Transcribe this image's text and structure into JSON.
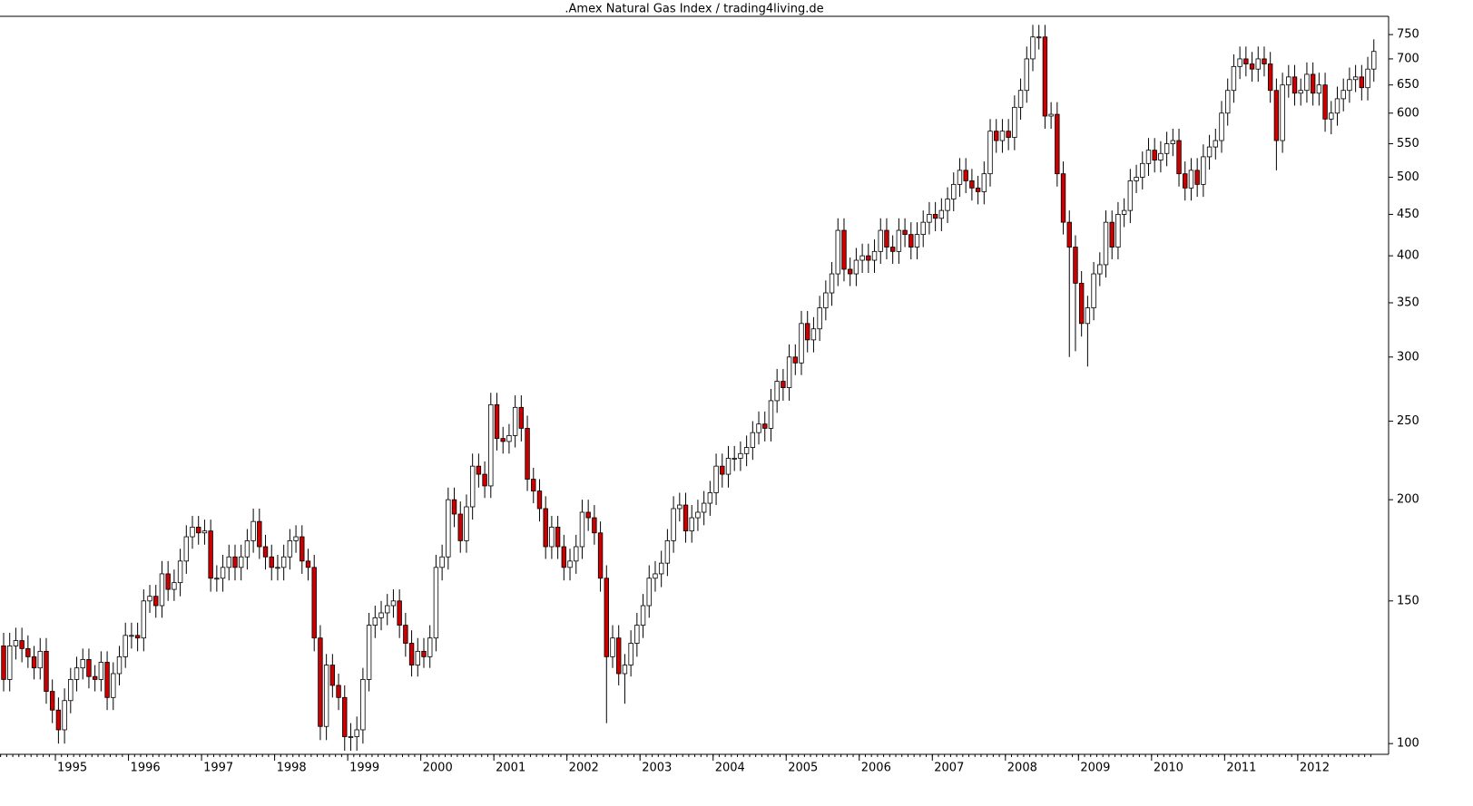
{
  "chart_data": {
    "type": "candlestick",
    "title": ".Amex Natural Gas Index / trading4living.de",
    "log_scale": true,
    "ylim": [
      97,
      790
    ],
    "yticks": [
      100,
      150,
      200,
      250,
      300,
      350,
      400,
      450,
      500,
      550,
      600,
      650,
      700,
      750
    ],
    "up_color": "#ffffff",
    "down_color": "#cc0000",
    "categories": [
      null,
      null,
      null,
      null,
      null,
      null,
      null,
      null,
      null,
      "1995",
      null,
      null,
      null,
      null,
      null,
      null,
      null,
      null,
      null,
      null,
      null,
      "1996",
      null,
      null,
      null,
      null,
      null,
      null,
      null,
      null,
      null,
      null,
      null,
      "1997",
      null,
      null,
      null,
      null,
      null,
      null,
      null,
      null,
      null,
      null,
      null,
      "1998",
      null,
      null,
      null,
      null,
      null,
      null,
      null,
      null,
      null,
      null,
      null,
      "1999",
      null,
      null,
      null,
      null,
      null,
      null,
      null,
      null,
      null,
      null,
      null,
      "2000",
      null,
      null,
      null,
      null,
      null,
      null,
      null,
      null,
      null,
      null,
      null,
      "2001",
      null,
      null,
      null,
      null,
      null,
      null,
      null,
      null,
      null,
      null,
      null,
      "2002",
      null,
      null,
      null,
      null,
      null,
      null,
      null,
      null,
      null,
      null,
      null,
      "2003",
      null,
      null,
      null,
      null,
      null,
      null,
      null,
      null,
      null,
      null,
      null,
      "2004",
      null,
      null,
      null,
      null,
      null,
      null,
      null,
      null,
      null,
      null,
      null,
      "2005",
      null,
      null,
      null,
      null,
      null,
      null,
      null,
      null,
      null,
      null,
      null,
      "2006",
      null,
      null,
      null,
      null,
      null,
      null,
      null,
      null,
      null,
      null,
      null,
      "2007",
      null,
      null,
      null,
      null,
      null,
      null,
      null,
      null,
      null,
      null,
      null,
      "2008",
      null,
      null,
      null,
      null,
      null,
      null,
      null,
      null,
      null,
      null,
      null,
      "2009",
      null,
      null,
      null,
      null,
      null,
      null,
      null,
      null,
      null,
      null,
      null,
      "2010",
      null,
      null,
      null,
      null,
      null,
      null,
      null,
      null,
      null,
      null,
      null,
      "2011",
      null,
      null,
      null,
      null,
      null,
      null,
      null,
      null,
      null,
      null,
      null,
      "2012",
      null,
      null,
      null,
      null,
      null,
      null,
      null,
      null,
      null,
      null,
      null,
      null
    ],
    "ohlc": [
      [
        132,
        137,
        116,
        120
      ],
      [
        120,
        137,
        116,
        132
      ],
      [
        132,
        139,
        127,
        134
      ],
      [
        134,
        139,
        126,
        131
      ],
      [
        131,
        136,
        124,
        128
      ],
      [
        128,
        132,
        120,
        124
      ],
      [
        124,
        135,
        120,
        130
      ],
      [
        130,
        135,
        112,
        116
      ],
      [
        116,
        120,
        106,
        110
      ],
      [
        110,
        114,
        100,
        104
      ],
      [
        104,
        117,
        100,
        113
      ],
      [
        113,
        124,
        109,
        120
      ],
      [
        120,
        128,
        116,
        124
      ],
      [
        124,
        131,
        120,
        127
      ],
      [
        127,
        131,
        117,
        121
      ],
      [
        121,
        125,
        116,
        120
      ],
      [
        120,
        130,
        116,
        126
      ],
      [
        126,
        130,
        110,
        114
      ],
      [
        114,
        126,
        110,
        122
      ],
      [
        122,
        132,
        118,
        128
      ],
      [
        128,
        141,
        124,
        136
      ],
      [
        136,
        141,
        131,
        136
      ],
      [
        136,
        141,
        130,
        135
      ],
      [
        135,
        155,
        130,
        150
      ],
      [
        150,
        157,
        145,
        152
      ],
      [
        152,
        157,
        143,
        148
      ],
      [
        148,
        168,
        143,
        162
      ],
      [
        162,
        168,
        150,
        155
      ],
      [
        155,
        164,
        150,
        158
      ],
      [
        158,
        174,
        152,
        168
      ],
      [
        168,
        186,
        162,
        180
      ],
      [
        180,
        191,
        174,
        185
      ],
      [
        185,
        191,
        176,
        182
      ],
      [
        182,
        189,
        176,
        183
      ],
      [
        183,
        189,
        154,
        160
      ],
      [
        160,
        166,
        154,
        160
      ],
      [
        160,
        171,
        154,
        165
      ],
      [
        165,
        176,
        159,
        170
      ],
      [
        170,
        176,
        159,
        165
      ],
      [
        165,
        176,
        159,
        170
      ],
      [
        170,
        184,
        164,
        178
      ],
      [
        178,
        195,
        172,
        188
      ],
      [
        188,
        195,
        169,
        175
      ],
      [
        175,
        181,
        164,
        170
      ],
      [
        170,
        176,
        159,
        165
      ],
      [
        165,
        171,
        159,
        165
      ],
      [
        165,
        176,
        159,
        170
      ],
      [
        170,
        184,
        164,
        178
      ],
      [
        178,
        186,
        172,
        180
      ],
      [
        180,
        186,
        162,
        168
      ],
      [
        168,
        174,
        159,
        165
      ],
      [
        165,
        171,
        130,
        135
      ],
      [
        135,
        140,
        101,
        105
      ],
      [
        105,
        129,
        101,
        125
      ],
      [
        125,
        129,
        114,
        118
      ],
      [
        118,
        122,
        110,
        114
      ],
      [
        114,
        118,
        98,
        102
      ],
      [
        102,
        106,
        98,
        102
      ],
      [
        102,
        108,
        98,
        104
      ],
      [
        104,
        124,
        100,
        120
      ],
      [
        120,
        145,
        116,
        140
      ],
      [
        140,
        148,
        135,
        143
      ],
      [
        143,
        150,
        138,
        145
      ],
      [
        145,
        153,
        140,
        148
      ],
      [
        148,
        155,
        143,
        150
      ],
      [
        150,
        155,
        135,
        140
      ],
      [
        140,
        145,
        128,
        133
      ],
      [
        133,
        138,
        121,
        125
      ],
      [
        125,
        135,
        121,
        130
      ],
      [
        130,
        135,
        124,
        128
      ],
      [
        128,
        140,
        124,
        135
      ],
      [
        135,
        171,
        130,
        165
      ],
      [
        165,
        176,
        159,
        170
      ],
      [
        170,
        207,
        164,
        200
      ],
      [
        200,
        207,
        185,
        192
      ],
      [
        192,
        199,
        172,
        178
      ],
      [
        178,
        203,
        172,
        196
      ],
      [
        196,
        228,
        189,
        220
      ],
      [
        220,
        228,
        207,
        215
      ],
      [
        215,
        223,
        201,
        208
      ],
      [
        208,
        271,
        201,
        262
      ],
      [
        262,
        271,
        230,
        238
      ],
      [
        238,
        246,
        228,
        236
      ],
      [
        236,
        248,
        228,
        240
      ],
      [
        240,
        269,
        232,
        260
      ],
      [
        260,
        269,
        236,
        245
      ],
      [
        245,
        254,
        205,
        212
      ],
      [
        212,
        219,
        198,
        205
      ],
      [
        205,
        212,
        188,
        195
      ],
      [
        195,
        202,
        169,
        175
      ],
      [
        175,
        191,
        169,
        185
      ],
      [
        185,
        191,
        169,
        175
      ],
      [
        175,
        181,
        159,
        165
      ],
      [
        165,
        174,
        159,
        168
      ],
      [
        168,
        181,
        162,
        175
      ],
      [
        175,
        200,
        169,
        193
      ],
      [
        193,
        200,
        183,
        190
      ],
      [
        190,
        197,
        176,
        182
      ],
      [
        182,
        188,
        154,
        160
      ],
      [
        160,
        166,
        106,
        128
      ],
      [
        128,
        140,
        124,
        135
      ],
      [
        135,
        140,
        118,
        122
      ],
      [
        122,
        129,
        112,
        125
      ],
      [
        125,
        138,
        121,
        133
      ],
      [
        133,
        145,
        128,
        140
      ],
      [
        140,
        153,
        135,
        148
      ],
      [
        148,
        166,
        143,
        160
      ],
      [
        160,
        168,
        154,
        162
      ],
      [
        162,
        173,
        156,
        167
      ],
      [
        167,
        184,
        161,
        178
      ],
      [
        178,
        202,
        172,
        195
      ],
      [
        195,
        204,
        188,
        197
      ],
      [
        197,
        204,
        177,
        183
      ],
      [
        183,
        197,
        177,
        190
      ],
      [
        190,
        200,
        183,
        193
      ],
      [
        193,
        205,
        186,
        198
      ],
      [
        198,
        211,
        191,
        204
      ],
      [
        204,
        228,
        197,
        220
      ],
      [
        220,
        228,
        207,
        215
      ],
      [
        215,
        233,
        207,
        225
      ],
      [
        225,
        233,
        217,
        225
      ],
      [
        225,
        236,
        217,
        228
      ],
      [
        228,
        240,
        220,
        232
      ],
      [
        232,
        250,
        224,
        242
      ],
      [
        242,
        257,
        234,
        248
      ],
      [
        248,
        257,
        236,
        245
      ],
      [
        245,
        274,
        236,
        265
      ],
      [
        265,
        290,
        256,
        280
      ],
      [
        280,
        290,
        265,
        275
      ],
      [
        275,
        311,
        265,
        300
      ],
      [
        300,
        311,
        285,
        295
      ],
      [
        295,
        342,
        285,
        330
      ],
      [
        330,
        342,
        304,
        315
      ],
      [
        315,
        336,
        304,
        325
      ],
      [
        325,
        357,
        314,
        345
      ],
      [
        345,
        373,
        333,
        360
      ],
      [
        360,
        393,
        347,
        380
      ],
      [
        380,
        445,
        367,
        430
      ],
      [
        430,
        445,
        372,
        385
      ],
      [
        385,
        398,
        367,
        380
      ],
      [
        380,
        409,
        367,
        395
      ],
      [
        395,
        414,
        381,
        400
      ],
      [
        400,
        414,
        381,
        395
      ],
      [
        395,
        419,
        381,
        405
      ],
      [
        405,
        445,
        391,
        430
      ],
      [
        430,
        445,
        396,
        410
      ],
      [
        410,
        424,
        391,
        405
      ],
      [
        405,
        445,
        391,
        430
      ],
      [
        430,
        445,
        410,
        425
      ],
      [
        425,
        440,
        396,
        410
      ],
      [
        410,
        440,
        396,
        425
      ],
      [
        425,
        455,
        410,
        440
      ],
      [
        440,
        466,
        425,
        450
      ],
      [
        450,
        466,
        429,
        445
      ],
      [
        445,
        471,
        429,
        455
      ],
      [
        455,
        486,
        439,
        470
      ],
      [
        470,
        507,
        454,
        490
      ],
      [
        490,
        528,
        473,
        510
      ],
      [
        510,
        528,
        478,
        495
      ],
      [
        495,
        512,
        468,
        485
      ],
      [
        485,
        502,
        463,
        480
      ],
      [
        480,
        523,
        463,
        505
      ],
      [
        505,
        590,
        487,
        570
      ],
      [
        570,
        590,
        536,
        555
      ],
      [
        555,
        590,
        536,
        570
      ],
      [
        570,
        590,
        540,
        560
      ],
      [
        560,
        631,
        540,
        610
      ],
      [
        610,
        662,
        589,
        640
      ],
      [
        640,
        725,
        618,
        700
      ],
      [
        700,
        771,
        676,
        745
      ],
      [
        745,
        771,
        719,
        745
      ],
      [
        745,
        771,
        574,
        595
      ],
      [
        595,
        619,
        574,
        598
      ],
      [
        598,
        619,
        487,
        505
      ],
      [
        505,
        523,
        425,
        440
      ],
      [
        440,
        455,
        300,
        410
      ],
      [
        410,
        424,
        305,
        370
      ],
      [
        370,
        383,
        318,
        330
      ],
      [
        330,
        357,
        292,
        345
      ],
      [
        345,
        393,
        333,
        380
      ],
      [
        380,
        404,
        367,
        390
      ],
      [
        390,
        455,
        376,
        440
      ],
      [
        440,
        455,
        396,
        410
      ],
      [
        410,
        466,
        396,
        450
      ],
      [
        450,
        471,
        434,
        455
      ],
      [
        455,
        512,
        439,
        495
      ],
      [
        495,
        518,
        478,
        500
      ],
      [
        500,
        538,
        483,
        520
      ],
      [
        520,
        559,
        502,
        540
      ],
      [
        540,
        559,
        507,
        525
      ],
      [
        525,
        554,
        507,
        535
      ],
      [
        535,
        569,
        516,
        550
      ],
      [
        550,
        574,
        531,
        555
      ],
      [
        555,
        574,
        487,
        505
      ],
      [
        505,
        523,
        468,
        485
      ],
      [
        485,
        528,
        468,
        510
      ],
      [
        510,
        528,
        473,
        490
      ],
      [
        490,
        549,
        473,
        530
      ],
      [
        530,
        564,
        511,
        545
      ],
      [
        545,
        574,
        526,
        555
      ],
      [
        555,
        621,
        536,
        600
      ],
      [
        600,
        662,
        579,
        640
      ],
      [
        640,
        709,
        618,
        685
      ],
      [
        685,
        725,
        661,
        700
      ],
      [
        700,
        725,
        666,
        690
      ],
      [
        690,
        714,
        656,
        680
      ],
      [
        680,
        725,
        656,
        700
      ],
      [
        700,
        725,
        666,
        690
      ],
      [
        690,
        714,
        618,
        640
      ],
      [
        640,
        662,
        510,
        555
      ],
      [
        555,
        673,
        536,
        650
      ],
      [
        650,
        688,
        627,
        665
      ],
      [
        665,
        688,
        613,
        635
      ],
      [
        635,
        662,
        613,
        640
      ],
      [
        640,
        693,
        618,
        670
      ],
      [
        670,
        693,
        613,
        635
      ],
      [
        635,
        673,
        613,
        650
      ],
      [
        650,
        673,
        569,
        590
      ],
      [
        590,
        621,
        565,
        600
      ],
      [
        600,
        647,
        579,
        625
      ],
      [
        625,
        662,
        603,
        640
      ],
      [
        640,
        683,
        618,
        660
      ],
      [
        660,
        688,
        637,
        665
      ],
      [
        665,
        688,
        622,
        645
      ],
      [
        645,
        704,
        622,
        680
      ],
      [
        680,
        740,
        656,
        715
      ]
    ]
  }
}
